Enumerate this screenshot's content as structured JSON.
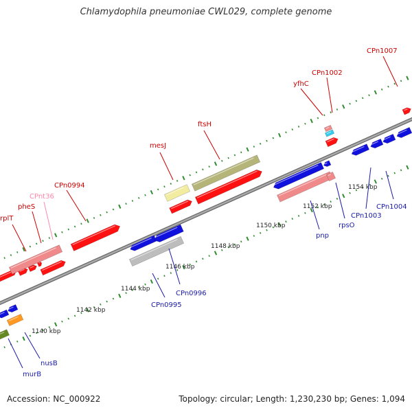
{
  "title": "Chlamydophila pneumoniae CWL029, complete genome",
  "footer": {
    "accession": "Accession: NC_000922",
    "summary": "Topology: circular; Length: 1,230,230 bp; Genes: 1,094"
  },
  "colors": {
    "backbone": "#999999",
    "tick": "#2e8b2e",
    "label_forward": "#cc0000",
    "label_reverse": "#1a1aaa",
    "label_rna": "#ff88aa",
    "cds_forward": "#ff1111",
    "cds_reverse": "#1111dd",
    "rrna": "#f08a8a",
    "annotated_gene": "#b5b57a",
    "pale_gene": "#f2eca0",
    "grey_gene": "#bdbdbd",
    "orange_gene": "#ff9922",
    "olive_gene": "#668822",
    "cyan_gene": "#33ccee"
  },
  "scale_labels": [
    "1140 kbp",
    "1142 kbp",
    "1144 kbp",
    "1146 kbp",
    "1148 kbp",
    "1150 kbp",
    "1152 kbp",
    "1154 kbp"
  ],
  "forward_labels": [
    "rplT",
    "pheS",
    "CPnt36",
    "CPn0994",
    "mesJ",
    "ftsH",
    "yfhC",
    "CPn1002",
    "CPn1007"
  ],
  "reverse_labels": [
    "murB",
    "nusB",
    "CPn0995",
    "CPn0996",
    "pnp",
    "rpsO",
    "CPn1003",
    "CPn1004"
  ]
}
